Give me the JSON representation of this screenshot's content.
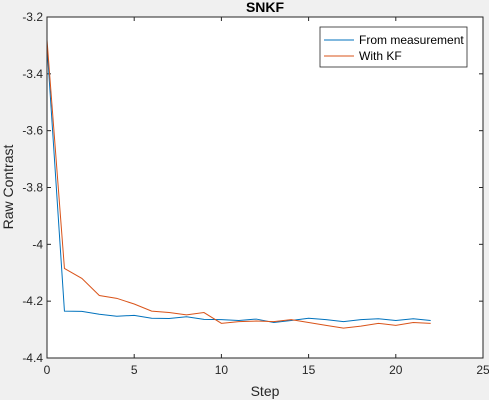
{
  "chart_data": {
    "type": "line",
    "title": "SNKF",
    "xlabel": "Step",
    "ylabel": "Raw Contrast",
    "xlim": [
      0,
      25
    ],
    "ylim": [
      -4.4,
      -3.2
    ],
    "xticks": [
      0,
      5,
      10,
      15,
      20,
      25
    ],
    "yticks": [
      -4.4,
      -4.2,
      -4,
      -3.8,
      -3.6,
      -3.4,
      -3.2
    ],
    "xtick_labels": [
      "0",
      "5",
      "10",
      "15",
      "20",
      "25"
    ],
    "ytick_labels": [
      "-4.4",
      "-4.2",
      "-4",
      "-3.8",
      "-3.6",
      "-3.4",
      "-3.2"
    ],
    "grid": false,
    "legend_position": "top-right",
    "series": [
      {
        "name": "From measurement",
        "color": "#0072BD",
        "x": [
          0,
          1,
          2,
          3,
          4,
          5,
          6,
          7,
          8,
          9,
          10,
          11,
          12,
          13,
          14,
          15,
          16,
          17,
          18,
          19,
          20,
          21,
          22
        ],
        "y": [
          -3.3,
          -4.235,
          -4.236,
          -4.246,
          -4.253,
          -4.25,
          -4.26,
          -4.261,
          -4.255,
          -4.264,
          -4.265,
          -4.268,
          -4.263,
          -4.275,
          -4.268,
          -4.26,
          -4.265,
          -4.272,
          -4.265,
          -4.262,
          -4.268,
          -4.262,
          -4.268
        ]
      },
      {
        "name": "With KF",
        "color": "#D95319",
        "x": [
          0,
          1,
          2,
          3,
          4,
          5,
          6,
          7,
          8,
          9,
          10,
          11,
          12,
          13,
          14,
          15,
          16,
          17,
          18,
          19,
          20,
          21,
          22
        ],
        "y": [
          -3.28,
          -4.085,
          -4.12,
          -4.18,
          -4.19,
          -4.21,
          -4.235,
          -4.24,
          -4.248,
          -4.24,
          -4.278,
          -4.272,
          -4.27,
          -4.272,
          -4.265,
          -4.275,
          -4.285,
          -4.295,
          -4.288,
          -4.278,
          -4.285,
          -4.275,
          -4.278
        ]
      }
    ]
  }
}
